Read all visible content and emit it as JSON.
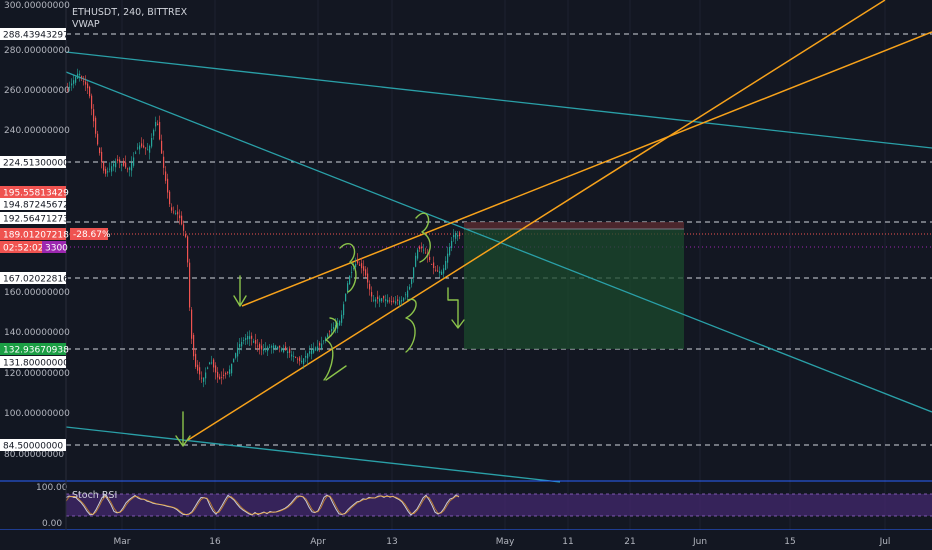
{
  "header": {
    "symbol_line": "ETHUSDT, 240, BITTREX",
    "indicator": "VWAP"
  },
  "stoch": {
    "label": "Stoch RSI",
    "ticks": [
      "100.00",
      "0.00"
    ]
  },
  "x_axis": {
    "labels": [
      "Mar",
      "16",
      "Apr",
      "13",
      "May",
      "11",
      "21",
      "Jun",
      "15",
      "Jul"
    ]
  },
  "price_axis": {
    "ticks": [
      "300.00000000",
      "280.00000000",
      "260.00000000",
      "240.00000000",
      "160.00000000",
      "140.00000000",
      "120.00000000",
      "100.00000000",
      "80.00000000"
    ],
    "badges": [
      {
        "text": "288.43943297",
        "style": "white"
      },
      {
        "text": "224.51300000",
        "style": "white"
      },
      {
        "text": "195.55813429",
        "style": "red"
      },
      {
        "text": "194.87245672",
        "style": "white"
      },
      {
        "text": "192.56471273",
        "style": "white"
      },
      {
        "text": "189.01207218",
        "style": "red"
      },
      {
        "text": "02:52:02",
        "style": "red"
      },
      {
        "text": "3300",
        "style": "purple"
      },
      {
        "text": "167.02022816",
        "style": "white"
      },
      {
        "text": "132.93670938",
        "style": "green"
      },
      {
        "text": "131.80000000",
        "style": "white"
      },
      {
        "text": "84.50000000",
        "style": "white"
      }
    ]
  },
  "position": {
    "change": "-28.67%"
  },
  "colors": {
    "bg": "#131722",
    "up": "#26a69a",
    "down": "#ef5350",
    "orange": "#f7a21b",
    "teal": "#2aa0a8",
    "green_ann": "#8bc34a"
  }
}
